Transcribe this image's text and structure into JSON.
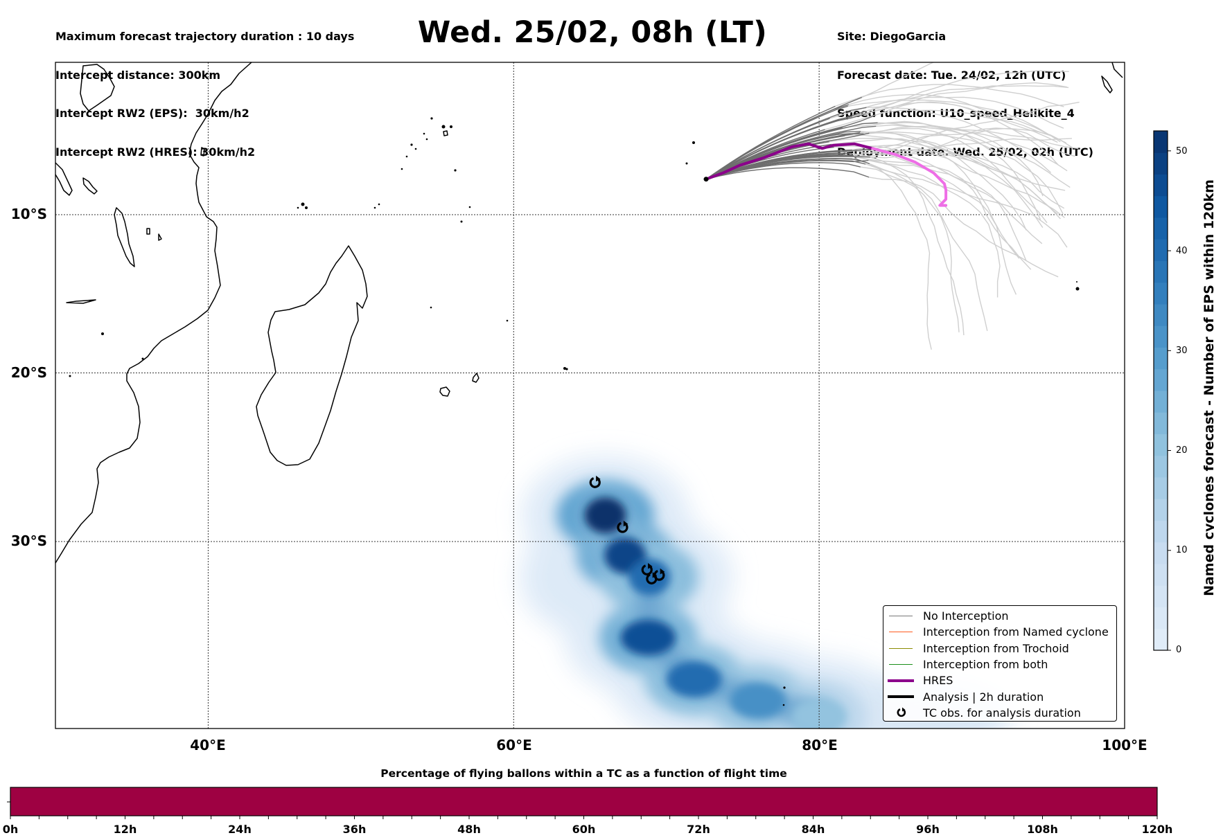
{
  "header_left": {
    "lines": [
      "Maximum forecast trajectory duration : 10 days",
      "Intercept distance: 300km",
      "Intercept RW2 (EPS):  30km/h2",
      "Intercept RW2 (HRES): 30km/h2"
    ]
  },
  "title": "Wed. 25/02, 08h (LT)",
  "header_right": {
    "lines": [
      "Site: DiegoGarcia",
      "Forecast date: Tue. 24/02, 12h (UTC)",
      "Speed function: U10_speed_Helikite_4",
      "Deployment date: Wed. 25/02, 02h (UTC)"
    ]
  },
  "colors": {
    "no_interception": "#777777",
    "named_cyclone": "#ff5a1e",
    "trochoid": "#8a8a00",
    "both": "#1a8f1a",
    "hres": "#8b008b",
    "hres_late": "#ee6ee6",
    "analysis": "#000000",
    "ensemble_late": "#cfcfcf",
    "bar_fill": "#9e0142",
    "density_dark": "#08306b",
    "density_light": "#deebf7"
  },
  "chart_data": [
    {
      "type": "map",
      "lon_range": [
        30,
        100
      ],
      "lat_range": [
        -1,
        -40
      ],
      "lon_ticks": [
        "40°E",
        "60°E",
        "80°E",
        "100°E"
      ],
      "lat_ticks": [
        "10°S",
        "20°S",
        "30°S"
      ],
      "grid": true,
      "legend_position": "bottom-right",
      "legend": [
        {
          "label": "No Interception",
          "symbol": "thin-line",
          "color_key": "no_interception"
        },
        {
          "label": "Interception from Named cyclone",
          "symbol": "thin-line",
          "color_key": "named_cyclone"
        },
        {
          "label": "Interception from Trochoid",
          "symbol": "thin-line",
          "color_key": "trochoid"
        },
        {
          "label": "Interception from both",
          "symbol": "thin-line",
          "color_key": "both"
        },
        {
          "label": "HRES",
          "symbol": "thick-line",
          "color_key": "hres"
        },
        {
          "label": "Analysis | 2h duration",
          "symbol": "thick-line",
          "color_key": "analysis"
        },
        {
          "label": "TC obs. for analysis duration",
          "symbol": "cyclone-icon",
          "color_key": "analysis"
        }
      ],
      "hres_track": {
        "lon": [
          72.6,
          73.7,
          74.8,
          76.4,
          78.2,
          79.3,
          80.2,
          80.9,
          82.3,
          83.5,
          85.0,
          86.3,
          87.5,
          88.2,
          88.3,
          88.3,
          87.9,
          88.3
        ],
        "lat": [
          -7.7,
          -7.3,
          -6.8,
          -6.3,
          -5.6,
          -5.4,
          -5.7,
          -5.5,
          -5.4,
          -5.7,
          -6.1,
          -6.6,
          -7.3,
          -8.0,
          -8.4,
          -9.0,
          -9.4,
          -9.4
        ]
      },
      "tc_observations": [
        {
          "lon": 65.3,
          "lat": -26.6
        },
        {
          "lon": 67.1,
          "lat": -29.2
        },
        {
          "lon": 68.7,
          "lat": -31.6
        },
        {
          "lon": 69.5,
          "lat": -31.9
        },
        {
          "lon": 69.0,
          "lat": -32.1
        }
      ],
      "density_cores": [
        {
          "lon": 66.0,
          "lat": -28.5,
          "value": 52
        },
        {
          "lon": 67.3,
          "lat": -30.8,
          "value": 48
        },
        {
          "lon": 68.9,
          "lat": -32.0,
          "value": 40
        },
        {
          "lon": 68.8,
          "lat": -35.3,
          "value": 46
        },
        {
          "lon": 71.8,
          "lat": -37.5,
          "value": 40
        },
        {
          "lon": 76.0,
          "lat": -38.6,
          "value": 32
        },
        {
          "lon": 80.0,
          "lat": -39.4,
          "value": 20
        }
      ]
    },
    {
      "type": "colorbar",
      "label": "Named cyclones forecast - Number of EPS within 120km",
      "range": [
        0,
        52
      ],
      "ticks": [
        "0",
        "10",
        "20",
        "30",
        "40",
        "50"
      ],
      "tick_values": [
        0,
        10,
        20,
        30,
        40,
        50
      ]
    },
    {
      "type": "bar",
      "title": "Percentage of flying ballons within a TC as a function of flight time",
      "xlim": [
        0,
        120
      ],
      "x_ticks": [
        "0h",
        "12h",
        "24h",
        "36h",
        "48h",
        "60h",
        "72h",
        "84h",
        "96h",
        "108h",
        "120h"
      ],
      "x_tick_values": [
        0,
        12,
        24,
        36,
        48,
        60,
        72,
        84,
        96,
        108,
        120
      ],
      "minor_tick_step": 3,
      "segments": [
        {
          "x0": 0,
          "x1": 120,
          "color_key": "bar_fill"
        }
      ]
    }
  ]
}
